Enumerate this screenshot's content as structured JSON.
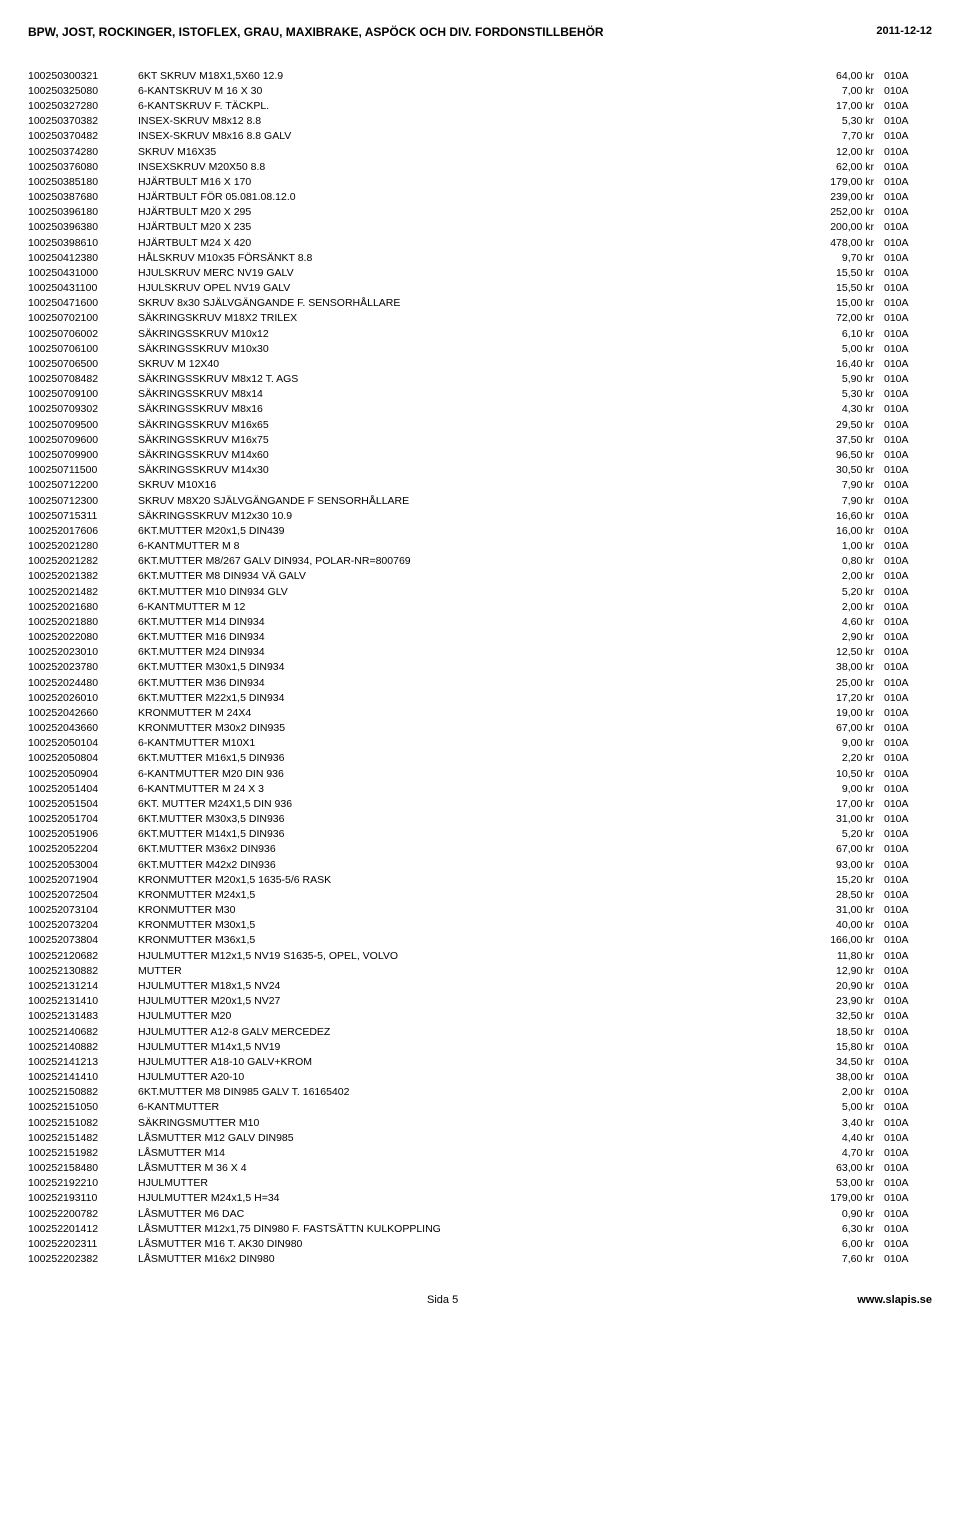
{
  "header": {
    "title": "BPW, JOST, ROCKINGER, ISTOFLEX, GRAU, MAXIBRAKE, ASPÖCK OCH DIV. FORDONSTILLBEHÖR",
    "date": "2011-12-12"
  },
  "footer": {
    "page": "Sida 5",
    "site": "www.slapis.se"
  },
  "rows": [
    {
      "a": "100250300321",
      "d": "6KT SKRUV M18X1,5X60  12.9",
      "p": "64,00 kr",
      "c": "010A"
    },
    {
      "a": "100250325080",
      "d": "6-KANTSKRUV M 16 X 30",
      "p": "7,00 kr",
      "c": "010A"
    },
    {
      "a": "100250327280",
      "d": "6-KANTSKRUV F. TÄCKPL.",
      "p": "17,00 kr",
      "c": "010A"
    },
    {
      "a": "100250370382",
      "d": "INSEX-SKRUV M8x12 8.8",
      "p": "5,30 kr",
      "c": "010A"
    },
    {
      "a": "100250370482",
      "d": "INSEX-SKRUV M8x16 8.8  GALV",
      "p": "7,70 kr",
      "c": "010A"
    },
    {
      "a": "100250374280",
      "d": "SKRUV M16X35",
      "p": "12,00 kr",
      "c": "010A"
    },
    {
      "a": "100250376080",
      "d": "INSEXSKRUV M20X50 8.8",
      "p": "62,00 kr",
      "c": "010A"
    },
    {
      "a": "100250385180",
      "d": "HJÄRTBULT M16 X 170",
      "p": "179,00 kr",
      "c": "010A"
    },
    {
      "a": "100250387680",
      "d": "HJÄRTBULT FÖR  05.081.08.12.0",
      "p": "239,00 kr",
      "c": "010A"
    },
    {
      "a": "100250396180",
      "d": "HJÄRTBULT M20 X 295",
      "p": "252,00 kr",
      "c": "010A"
    },
    {
      "a": "100250396380",
      "d": "HJÄRTBULT M20 X 235",
      "p": "200,00 kr",
      "c": "010A"
    },
    {
      "a": "100250398610",
      "d": "HJÄRTBULT M24 X 420",
      "p": "478,00 kr",
      "c": "010A"
    },
    {
      "a": "100250412380",
      "d": "HÅLSKRUV M10x35 FÖRSÄNKT  8.8",
      "p": "9,70 kr",
      "c": "010A"
    },
    {
      "a": "100250431000",
      "d": "HJULSKRUV MERC NV19 GALV",
      "p": "15,50 kr",
      "c": "010A"
    },
    {
      "a": "100250431100",
      "d": "HJULSKRUV OPEL NV19 GALV",
      "p": "15,50 kr",
      "c": "010A"
    },
    {
      "a": "100250471600",
      "d": "SKRUV 8x30 SJÄLVGÄNGANDE  F. SENSORHÅLLARE",
      "p": "15,00 kr",
      "c": "010A"
    },
    {
      "a": "100250702100",
      "d": "SÄKRINGSKRUV M18X2 TRILEX",
      "p": "72,00 kr",
      "c": "010A"
    },
    {
      "a": "100250706002",
      "d": "SÄKRINGSSKRUV M10x12",
      "p": "6,10 kr",
      "c": "010A"
    },
    {
      "a": "100250706100",
      "d": "SÄKRINGSSKRUV M10x30",
      "p": "5,00 kr",
      "c": "010A"
    },
    {
      "a": "100250706500",
      "d": "SKRUV M 12X40",
      "p": "16,40 kr",
      "c": "010A"
    },
    {
      "a": "100250708482",
      "d": "SÄKRINGSSKRUV M8x12  T. AGS",
      "p": "5,90 kr",
      "c": "010A"
    },
    {
      "a": "100250709100",
      "d": "SÄKRINGSSKRUV M8x14",
      "p": "5,30 kr",
      "c": "010A"
    },
    {
      "a": "100250709302",
      "d": "SÄKRINGSSKRUV M8x16",
      "p": "4,30 kr",
      "c": "010A"
    },
    {
      "a": "100250709500",
      "d": "SÄKRINGSSKRUV M16x65",
      "p": "29,50 kr",
      "c": "010A"
    },
    {
      "a": "100250709600",
      "d": "SÄKRINGSSKRUV M16x75",
      "p": "37,50 kr",
      "c": "010A"
    },
    {
      "a": "100250709900",
      "d": "SÄKRINGSSKRUV M14x60",
      "p": "96,50 kr",
      "c": "010A"
    },
    {
      "a": "100250711500",
      "d": "SÄKRINGSSKRUV M14x30",
      "p": "30,50 kr",
      "c": "010A"
    },
    {
      "a": "100250712200",
      "d": "SKRUV M10X16",
      "p": "7,90 kr",
      "c": "010A"
    },
    {
      "a": "100250712300",
      "d": "SKRUV M8X20 SJÄLVGÄNGANDE F SENSORHÅLLARE",
      "p": "7,90 kr",
      "c": "010A"
    },
    {
      "a": "100250715311",
      "d": "SÄKRINGSSKRUV M12x30 10.9",
      "p": "16,60 kr",
      "c": "010A"
    },
    {
      "a": "100252017606",
      "d": "6KT.MUTTER M20x1,5 DIN439",
      "p": "16,00 kr",
      "c": "010A"
    },
    {
      "a": "100252021280",
      "d": "6-KANTMUTTER M 8",
      "p": "1,00 kr",
      "c": "010A"
    },
    {
      "a": "100252021282",
      "d": "6KT.MUTTER M8/267 GALV  DIN934, POLAR-NR=800769",
      "p": "0,80 kr",
      "c": "010A"
    },
    {
      "a": "100252021382",
      "d": "6KT.MUTTER M8 DIN934 VÄ  GALV",
      "p": "2,00 kr",
      "c": "010A"
    },
    {
      "a": "100252021482",
      "d": "6KT.MUTTER M10 DIN934 GLV",
      "p": "5,20 kr",
      "c": "010A"
    },
    {
      "a": "100252021680",
      "d": "6-KANTMUTTER  M 12",
      "p": "2,00 kr",
      "c": "010A"
    },
    {
      "a": "100252021880",
      "d": "6KT.MUTTER M14 DIN934",
      "p": "4,60 kr",
      "c": "010A"
    },
    {
      "a": "100252022080",
      "d": "6KT.MUTTER M16 DIN934",
      "p": "2,90 kr",
      "c": "010A"
    },
    {
      "a": "100252023010",
      "d": "6KT.MUTTER M24 DIN934",
      "p": "12,50 kr",
      "c": "010A"
    },
    {
      "a": "100252023780",
      "d": "6KT.MUTTER M30x1,5 DIN934",
      "p": "38,00 kr",
      "c": "010A"
    },
    {
      "a": "100252024480",
      "d": "6KT.MUTTER M36 DIN934",
      "p": "25,00 kr",
      "c": "010A"
    },
    {
      "a": "100252026010",
      "d": "6KT.MUTTER M22x1,5 DIN934",
      "p": "17,20 kr",
      "c": "010A"
    },
    {
      "a": "100252042660",
      "d": "KRONMUTTER M 24X4",
      "p": "19,00 kr",
      "c": "010A"
    },
    {
      "a": "100252043660",
      "d": "KRONMUTTER M30x2 DIN935",
      "p": "67,00 kr",
      "c": "010A"
    },
    {
      "a": "100252050104",
      "d": "6-KANTMUTTER M10X1",
      "p": "9,00 kr",
      "c": "010A"
    },
    {
      "a": "100252050804",
      "d": "6KT.MUTTER M16x1,5 DIN936",
      "p": "2,20 kr",
      "c": "010A"
    },
    {
      "a": "100252050904",
      "d": "6-KANTMUTTER M20 DIN 936",
      "p": "10,50 kr",
      "c": "010A"
    },
    {
      "a": "100252051404",
      "d": "6-KANTMUTTER M 24 X 3",
      "p": "9,00 kr",
      "c": "010A"
    },
    {
      "a": "100252051504",
      "d": "6KT. MUTTER M24X1,5  DIN 936",
      "p": "17,00 kr",
      "c": "010A"
    },
    {
      "a": "100252051704",
      "d": "6KT.MUTTER M30x3,5 DIN936",
      "p": "31,00 kr",
      "c": "010A"
    },
    {
      "a": "100252051906",
      "d": "6KT.MUTTER M14x1,5 DIN936",
      "p": "5,20 kr",
      "c": "010A"
    },
    {
      "a": "100252052204",
      "d": "6KT.MUTTER M36x2 DIN936",
      "p": "67,00 kr",
      "c": "010A"
    },
    {
      "a": "100252053004",
      "d": "6KT.MUTTER M42x2 DIN936",
      "p": "93,00 kr",
      "c": "010A"
    },
    {
      "a": "100252071904",
      "d": "KRONMUTTER M20x1,5  1635-5/6 RASK",
      "p": "15,20 kr",
      "c": "010A"
    },
    {
      "a": "100252072504",
      "d": "KRONMUTTER M24x1,5",
      "p": "28,50 kr",
      "c": "010A"
    },
    {
      "a": "100252073104",
      "d": "KRONMUTTER M30",
      "p": "31,00 kr",
      "c": "010A"
    },
    {
      "a": "100252073204",
      "d": "KRONMUTTER M30x1,5",
      "p": "40,00 kr",
      "c": "010A"
    },
    {
      "a": "100252073804",
      "d": "KRONMUTTER M36x1,5",
      "p": "166,00 kr",
      "c": "010A"
    },
    {
      "a": "100252120682",
      "d": "HJULMUTTER M12x1,5 NV19  S1635-5, OPEL, VOLVO",
      "p": "11,80 kr",
      "c": "010A"
    },
    {
      "a": "100252130882",
      "d": "MUTTER",
      "p": "12,90 kr",
      "c": "010A"
    },
    {
      "a": "100252131214",
      "d": "HJULMUTTER M18x1,5 NV24",
      "p": "20,90 kr",
      "c": "010A"
    },
    {
      "a": "100252131410",
      "d": "HJULMUTTER M20x1,5 NV27",
      "p": "23,90 kr",
      "c": "010A"
    },
    {
      "a": "100252131483",
      "d": "HJULMUTTER M20",
      "p": "32,50 kr",
      "c": "010A"
    },
    {
      "a": "100252140682",
      "d": "HJULMUTTER A12-8 GALV  MERCEDEZ",
      "p": "18,50 kr",
      "c": "010A"
    },
    {
      "a": "100252140882",
      "d": "HJULMUTTER M14x1,5 NV19",
      "p": "15,80 kr",
      "c": "010A"
    },
    {
      "a": "100252141213",
      "d": "HJULMUTTER A18-10  GALV+KROM",
      "p": "34,50 kr",
      "c": "010A"
    },
    {
      "a": "100252141410",
      "d": "HJULMUTTER A20-10",
      "p": "38,00 kr",
      "c": "010A"
    },
    {
      "a": "100252150882",
      "d": "6KT.MUTTER M8 DIN985 GALV  T. 16165402",
      "p": "2,00 kr",
      "c": "010A"
    },
    {
      "a": "100252151050",
      "d": "6-KANTMUTTER",
      "p": "5,00 kr",
      "c": "010A"
    },
    {
      "a": "100252151082",
      "d": "SÄKRINGSMUTTER M10",
      "p": "3,40 kr",
      "c": "010A"
    },
    {
      "a": "100252151482",
      "d": "LÅSMUTTER M12 GALV DIN985",
      "p": "4,40 kr",
      "c": "010A"
    },
    {
      "a": "100252151982",
      "d": "LÅSMUTTER M14",
      "p": "4,70 kr",
      "c": "010A"
    },
    {
      "a": "100252158480",
      "d": "LÅSMUTTER M 36 X 4",
      "p": "63,00 kr",
      "c": "010A"
    },
    {
      "a": "100252192210",
      "d": "HJULMUTTER",
      "p": "53,00 kr",
      "c": "010A"
    },
    {
      "a": "100252193110",
      "d": "HJULMUTTER M24x1,5 H=34",
      "p": "179,00 kr",
      "c": "010A"
    },
    {
      "a": "100252200782",
      "d": "LÅSMUTTER M6 DAC",
      "p": "0,90 kr",
      "c": "010A"
    },
    {
      "a": "100252201412",
      "d": "LÅSMUTTER M12x1,75 DIN980  F. FASTSÄTTN KULKOPPLING",
      "p": "6,30 kr",
      "c": "010A"
    },
    {
      "a": "100252202311",
      "d": "LÅSMUTTER M16 T. AK30  DIN980",
      "p": "6,00 kr",
      "c": "010A"
    },
    {
      "a": "100252202382",
      "d": "LÅSMUTTER M16x2 DIN980",
      "p": "7,60 kr",
      "c": "010A"
    }
  ]
}
